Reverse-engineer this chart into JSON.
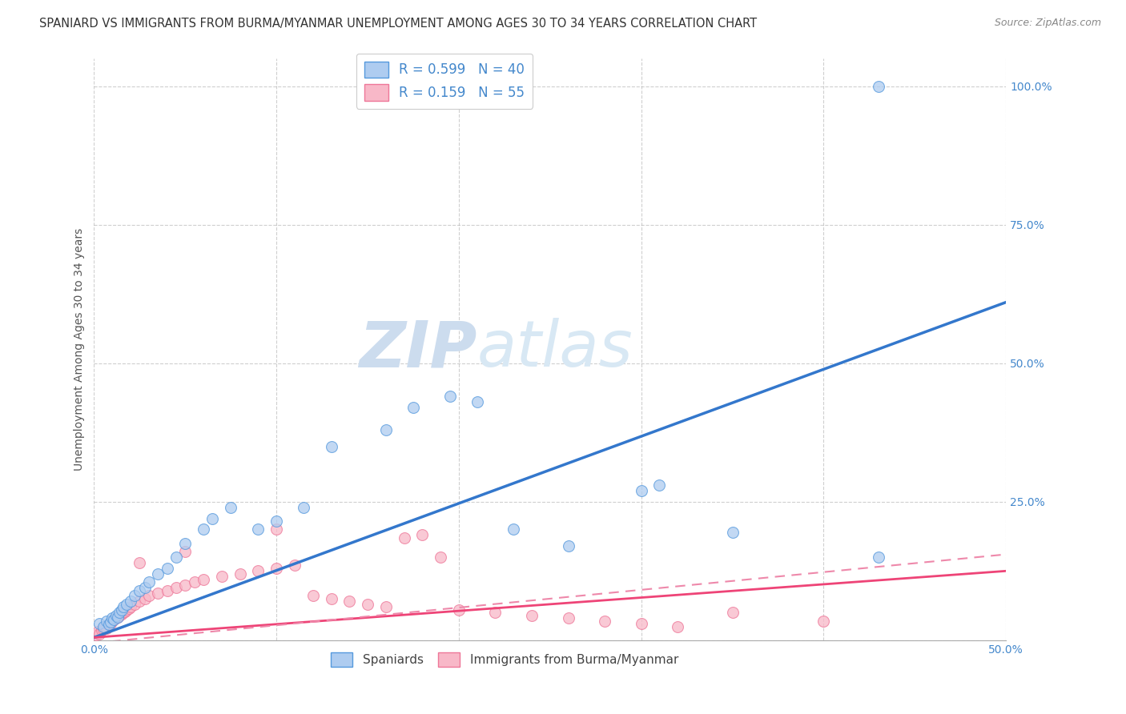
{
  "title": "SPANIARD VS IMMIGRANTS FROM BURMA/MYANMAR UNEMPLOYMENT AMONG AGES 30 TO 34 YEARS CORRELATION CHART",
  "source": "Source: ZipAtlas.com",
  "ylabel": "Unemployment Among Ages 30 to 34 years",
  "x_min": 0.0,
  "x_max": 0.5,
  "y_min": 0.0,
  "y_max": 1.05,
  "x_tick_positions": [
    0.0,
    0.1,
    0.2,
    0.3,
    0.4,
    0.5
  ],
  "x_tick_labels": [
    "0.0%",
    "",
    "",
    "",
    "",
    "50.0%"
  ],
  "y_tick_positions": [
    0.0,
    0.25,
    0.5,
    0.75,
    1.0
  ],
  "y_tick_labels": [
    "",
    "25.0%",
    "50.0%",
    "75.0%",
    "100.0%"
  ],
  "color_blue_fill": "#aeccf0",
  "color_blue_edge": "#5599dd",
  "color_pink_fill": "#f8b8c8",
  "color_pink_edge": "#ee7799",
  "color_line_blue": "#3377cc",
  "color_line_pink": "#ee4477",
  "color_line_pink_dash": "#ee88aa",
  "watermark_zip": "ZIP",
  "watermark_atlas": "atlas",
  "watermark_color": "#ddeeff",
  "grid_color": "#bbbbbb",
  "background_color": "#ffffff",
  "title_fontsize": 10.5,
  "axis_label_fontsize": 10,
  "tick_fontsize": 10,
  "source_fontsize": 9,
  "legend_fontsize": 12,
  "marker_size": 100,
  "spaniards_x": [
    0.003,
    0.005,
    0.007,
    0.008,
    0.009,
    0.01,
    0.011,
    0.012,
    0.013,
    0.014,
    0.015,
    0.016,
    0.018,
    0.02,
    0.022,
    0.025,
    0.028,
    0.03,
    0.035,
    0.04,
    0.045,
    0.05,
    0.06,
    0.065,
    0.075,
    0.09,
    0.1,
    0.115,
    0.13,
    0.16,
    0.175,
    0.195,
    0.21,
    0.23,
    0.26,
    0.3,
    0.31,
    0.35,
    0.43,
    0.43
  ],
  "spaniards_y": [
    0.03,
    0.025,
    0.035,
    0.028,
    0.033,
    0.04,
    0.038,
    0.045,
    0.042,
    0.05,
    0.055,
    0.06,
    0.065,
    0.07,
    0.08,
    0.09,
    0.095,
    0.105,
    0.12,
    0.13,
    0.15,
    0.175,
    0.2,
    0.22,
    0.24,
    0.2,
    0.215,
    0.24,
    0.35,
    0.38,
    0.42,
    0.44,
    0.43,
    0.2,
    0.17,
    0.27,
    0.28,
    0.195,
    0.15,
    1.0
  ],
  "burma_x": [
    0.001,
    0.002,
    0.003,
    0.004,
    0.005,
    0.006,
    0.007,
    0.008,
    0.009,
    0.01,
    0.011,
    0.012,
    0.013,
    0.014,
    0.015,
    0.016,
    0.017,
    0.018,
    0.019,
    0.02,
    0.022,
    0.025,
    0.028,
    0.03,
    0.035,
    0.04,
    0.045,
    0.05,
    0.055,
    0.06,
    0.07,
    0.08,
    0.09,
    0.1,
    0.11,
    0.12,
    0.13,
    0.14,
    0.15,
    0.16,
    0.17,
    0.18,
    0.19,
    0.2,
    0.22,
    0.24,
    0.26,
    0.28,
    0.3,
    0.32,
    0.1,
    0.05,
    0.025,
    0.35,
    0.4
  ],
  "burma_y": [
    0.01,
    0.015,
    0.012,
    0.018,
    0.02,
    0.025,
    0.022,
    0.028,
    0.03,
    0.035,
    0.038,
    0.04,
    0.042,
    0.045,
    0.048,
    0.05,
    0.052,
    0.055,
    0.058,
    0.06,
    0.065,
    0.07,
    0.075,
    0.08,
    0.085,
    0.09,
    0.095,
    0.1,
    0.105,
    0.11,
    0.115,
    0.12,
    0.125,
    0.13,
    0.135,
    0.08,
    0.075,
    0.07,
    0.065,
    0.06,
    0.185,
    0.19,
    0.15,
    0.055,
    0.05,
    0.045,
    0.04,
    0.035,
    0.03,
    0.025,
    0.2,
    0.16,
    0.14,
    0.05,
    0.035
  ]
}
